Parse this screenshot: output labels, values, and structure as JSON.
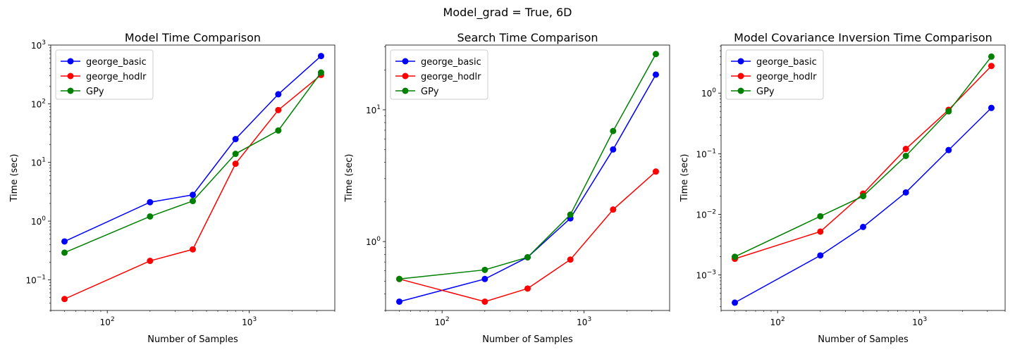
{
  "suptitle": "Model_grad = True, 6D",
  "chart_data": [
    {
      "type": "line",
      "title": "Model Time Comparison",
      "xlabel": "Number of Samples",
      "ylabel": "Time (sec)",
      "xscale": "log",
      "yscale": "log",
      "xlim": [
        40,
        4000
      ],
      "ylim": [
        0.03,
        1000
      ],
      "xticks": [
        {
          "value": 100,
          "base": "10",
          "exp": "2"
        },
        {
          "value": 1000,
          "base": "10",
          "exp": "3"
        }
      ],
      "yticks": [
        {
          "value": 0.1,
          "base": "10",
          "exp": "−1"
        },
        {
          "value": 1,
          "base": "10",
          "exp": "0"
        },
        {
          "value": 10,
          "base": "10",
          "exp": "1"
        },
        {
          "value": 100,
          "base": "10",
          "exp": "2"
        },
        {
          "value": 1000,
          "base": "10",
          "exp": "3"
        }
      ],
      "legend_loc": "upper left",
      "x": [
        50,
        200,
        400,
        800,
        1600,
        3200
      ],
      "series": [
        {
          "name": "george_basic",
          "color": "#0000ff",
          "values": [
            0.45,
            2.1,
            2.8,
            25,
            145,
            650
          ]
        },
        {
          "name": "george_hodlr",
          "color": "#ff0000",
          "values": [
            0.047,
            0.21,
            0.33,
            9.5,
            78,
            310
          ]
        },
        {
          "name": "GPy",
          "color": "#008000",
          "values": [
            0.29,
            1.2,
            2.2,
            14,
            35,
            340
          ]
        }
      ]
    },
    {
      "type": "line",
      "title": "Search Time Comparison",
      "xlabel": "Number of Samples",
      "ylabel": "Time (sec)",
      "xscale": "log",
      "yscale": "log",
      "xlim": [
        40,
        4000
      ],
      "ylim": [
        0.3,
        31
      ],
      "xticks": [
        {
          "value": 100,
          "base": "10",
          "exp": "2"
        },
        {
          "value": 1000,
          "base": "10",
          "exp": "3"
        }
      ],
      "yticks": [
        {
          "value": 1,
          "base": "10",
          "exp": "0"
        },
        {
          "value": 10,
          "base": "10",
          "exp": "1"
        }
      ],
      "legend_loc": "upper left",
      "x": [
        50,
        200,
        400,
        800,
        1600,
        3200
      ],
      "series": [
        {
          "name": "george_basic",
          "color": "#0000ff",
          "values": [
            0.35,
            0.52,
            0.76,
            1.5,
            5.0,
            18.5
          ]
        },
        {
          "name": "george_hodlr",
          "color": "#ff0000",
          "values": [
            0.52,
            0.35,
            0.44,
            0.73,
            1.75,
            3.4
          ]
        },
        {
          "name": "GPy",
          "color": "#008000",
          "values": [
            0.52,
            0.61,
            0.76,
            1.6,
            6.9,
            26.5
          ]
        }
      ]
    },
    {
      "type": "line",
      "title": "Model Covariance Inversion Time Comparison",
      "xlabel": "Number of Samples",
      "ylabel": "Time (sec)",
      "xscale": "log",
      "yscale": "log",
      "xlim": [
        40,
        4000
      ],
      "ylim": [
        0.00026,
        6.2
      ],
      "xticks": [
        {
          "value": 100,
          "base": "10",
          "exp": "2"
        },
        {
          "value": 1000,
          "base": "10",
          "exp": "3"
        }
      ],
      "yticks": [
        {
          "value": 0.001,
          "base": "10",
          "exp": "−3"
        },
        {
          "value": 0.01,
          "base": "10",
          "exp": "−2"
        },
        {
          "value": 0.1,
          "base": "10",
          "exp": "−1"
        },
        {
          "value": 1,
          "base": "10",
          "exp": "0"
        }
      ],
      "legend_loc": "upper left",
      "x": [
        50,
        200,
        400,
        800,
        1600,
        3200
      ],
      "series": [
        {
          "name": "george_basic",
          "color": "#0000ff",
          "values": [
            0.00035,
            0.0021,
            0.0062,
            0.023,
            0.115,
            0.57
          ]
        },
        {
          "name": "george_hodlr",
          "color": "#ff0000",
          "values": [
            0.00185,
            0.0052,
            0.022,
            0.12,
            0.53,
            2.8
          ]
        },
        {
          "name": "GPy",
          "color": "#008000",
          "values": [
            0.002,
            0.0093,
            0.02,
            0.092,
            0.5,
            4.0
          ]
        }
      ]
    }
  ]
}
